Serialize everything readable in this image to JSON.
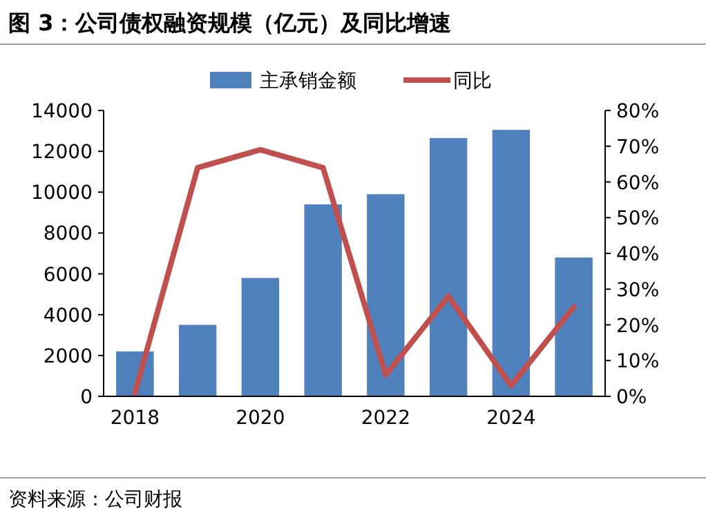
{
  "chart_data": {
    "type": "bar",
    "title": "图 3：公司债权融资规模（亿元）及同比增速",
    "categories": [
      "2018",
      null,
      "2020",
      null,
      "2022",
      null,
      "2024",
      null
    ],
    "series": [
      {
        "name": "主承销金额",
        "color": "#4f81bd",
        "values": [
          2200,
          3500,
          5800,
          9400,
          9900,
          12650,
          13050,
          6800
        ]
      },
      {
        "name": "同比",
        "type": "line",
        "axis": "y2",
        "color": "#c0504d",
        "values": [
          1,
          64,
          69,
          64,
          6,
          28,
          3,
          25
        ]
      }
    ],
    "ylim": [
      0,
      14000
    ],
    "yticks": [
      0,
      2000,
      4000,
      6000,
      8000,
      10000,
      12000,
      14000
    ],
    "y2lim": [
      0,
      80
    ],
    "y2ticks": [
      {
        "value": 0,
        "label": "0%"
      },
      {
        "value": 10,
        "label": "10%"
      },
      {
        "value": 20,
        "label": "20%"
      },
      {
        "value": 30,
        "label": "30%"
      },
      {
        "value": 40,
        "label": "40%"
      },
      {
        "value": 50,
        "label": "50%"
      },
      {
        "value": 60,
        "label": "60%"
      },
      {
        "value": 70,
        "label": "70%"
      },
      {
        "value": 80,
        "label": "80%"
      }
    ],
    "legend": "top",
    "annotations": [
      "资料来源：公司财报"
    ]
  }
}
